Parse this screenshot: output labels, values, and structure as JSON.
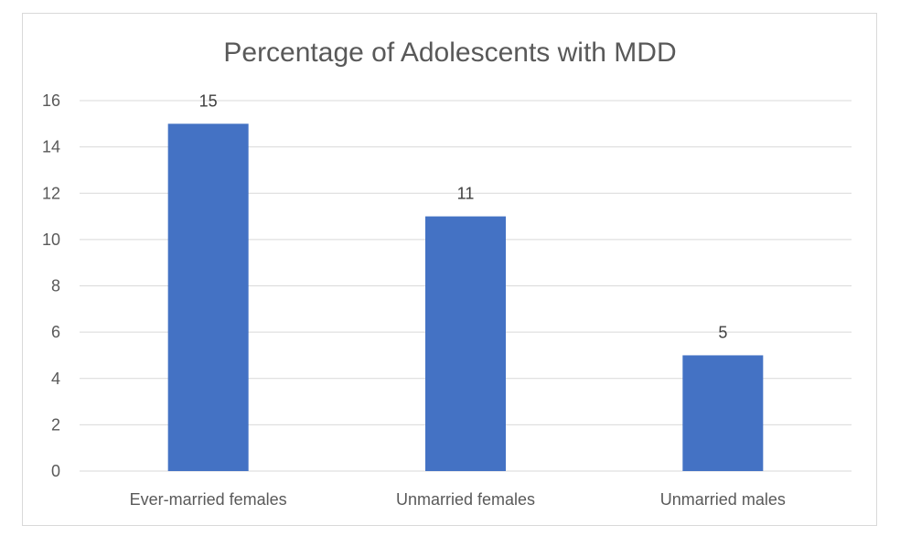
{
  "chart_data": {
    "type": "bar",
    "title": "Percentage of Adolescents with MDD",
    "categories": [
      "Ever-married females",
      "Unmarried females",
      "Unmarried males"
    ],
    "values": [
      15,
      11,
      5
    ],
    "data_labels": [
      "15",
      "11",
      "5"
    ],
    "ylim": [
      0,
      16
    ],
    "yticks": [
      0,
      2,
      4,
      6,
      8,
      10,
      12,
      14,
      16
    ],
    "xlabel": "",
    "ylabel": "",
    "grid": true,
    "legend": "none",
    "bar_color": "#4472C4",
    "grid_color": "#d9d9d9"
  }
}
